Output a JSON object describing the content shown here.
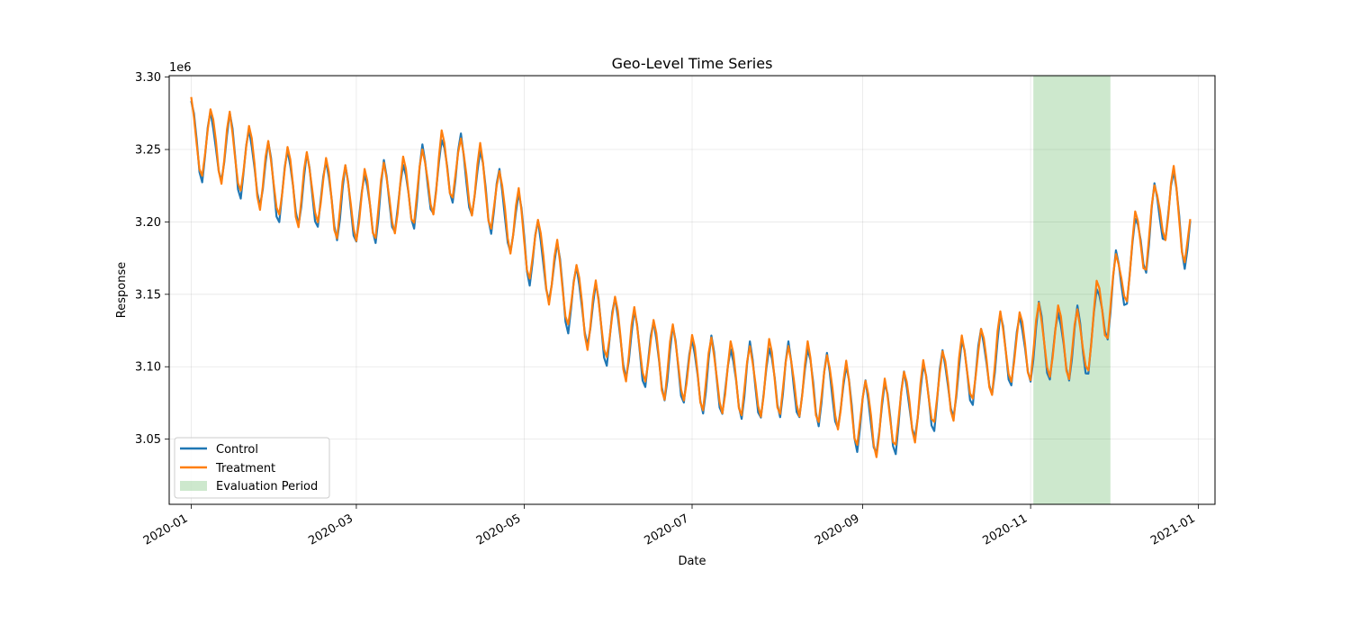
{
  "chart_data": {
    "type": "line",
    "title": "Geo-Level Time Series",
    "xlabel": "Date",
    "ylabel": "Response",
    "y_offset_label": "1e6",
    "xlim": [
      "2019-12-24",
      "2021-01-07"
    ],
    "ylim": [
      3005000,
      3301000
    ],
    "x_ticks": [
      "2020-01",
      "2020-03",
      "2020-05",
      "2020-07",
      "2020-09",
      "2020-11",
      "2021-01"
    ],
    "y_ticks": [
      {
        "value": 3050000,
        "label": "3.05"
      },
      {
        "value": 3100000,
        "label": "3.10"
      },
      {
        "value": 3150000,
        "label": "3.15"
      },
      {
        "value": 3200000,
        "label": "3.20"
      },
      {
        "value": 3250000,
        "label": "3.25"
      },
      {
        "value": 3300000,
        "label": "3.30"
      }
    ],
    "grid": true,
    "legend_position": "lower-left",
    "start_date": "2020-01-01",
    "end_date": "2020-12-29",
    "seasonality_period_days": 7,
    "trend_knots": [
      {
        "date": "2020-01-01",
        "value": 3258000
      },
      {
        "date": "2020-01-15",
        "value": 3250000
      },
      {
        "date": "2020-02-01",
        "value": 3227000
      },
      {
        "date": "2020-02-15",
        "value": 3222000
      },
      {
        "date": "2020-03-01",
        "value": 3210000
      },
      {
        "date": "2020-03-20",
        "value": 3220000
      },
      {
        "date": "2020-04-05",
        "value": 3240000
      },
      {
        "date": "2020-04-20",
        "value": 3218000
      },
      {
        "date": "2020-05-05",
        "value": 3180000
      },
      {
        "date": "2020-05-20",
        "value": 3145000
      },
      {
        "date": "2020-06-05",
        "value": 3120000
      },
      {
        "date": "2020-06-20",
        "value": 3105000
      },
      {
        "date": "2020-07-05",
        "value": 3095000
      },
      {
        "date": "2020-07-20",
        "value": 3090000
      },
      {
        "date": "2020-08-05",
        "value": 3092000
      },
      {
        "date": "2020-08-20",
        "value": 3085000
      },
      {
        "date": "2020-09-05",
        "value": 3062000
      },
      {
        "date": "2020-09-20",
        "value": 3075000
      },
      {
        "date": "2020-10-05",
        "value": 3092000
      },
      {
        "date": "2020-10-20",
        "value": 3110000
      },
      {
        "date": "2020-11-05",
        "value": 3118000
      },
      {
        "date": "2020-11-20",
        "value": 3115000
      },
      {
        "date": "2020-12-05",
        "value": 3165000
      },
      {
        "date": "2020-12-15",
        "value": 3200000
      },
      {
        "date": "2020-12-22",
        "value": 3215000
      },
      {
        "date": "2020-12-29",
        "value": 3190000
      }
    ],
    "weekly_pattern": [
      24000,
      14000,
      -2000,
      -20000,
      -26000,
      -10000,
      10000
    ],
    "series": [
      {
        "name": "Control",
        "color": "#1f77b4",
        "offset": 0
      },
      {
        "name": "Treatment",
        "color": "#ff7f0e",
        "offset": 1500
      }
    ],
    "shaded_regions": [
      {
        "name": "Evaluation Period",
        "start": "2020-11-02",
        "end": "2020-11-30",
        "color": "#2ca02c",
        "opacity": 0.24
      }
    ]
  }
}
